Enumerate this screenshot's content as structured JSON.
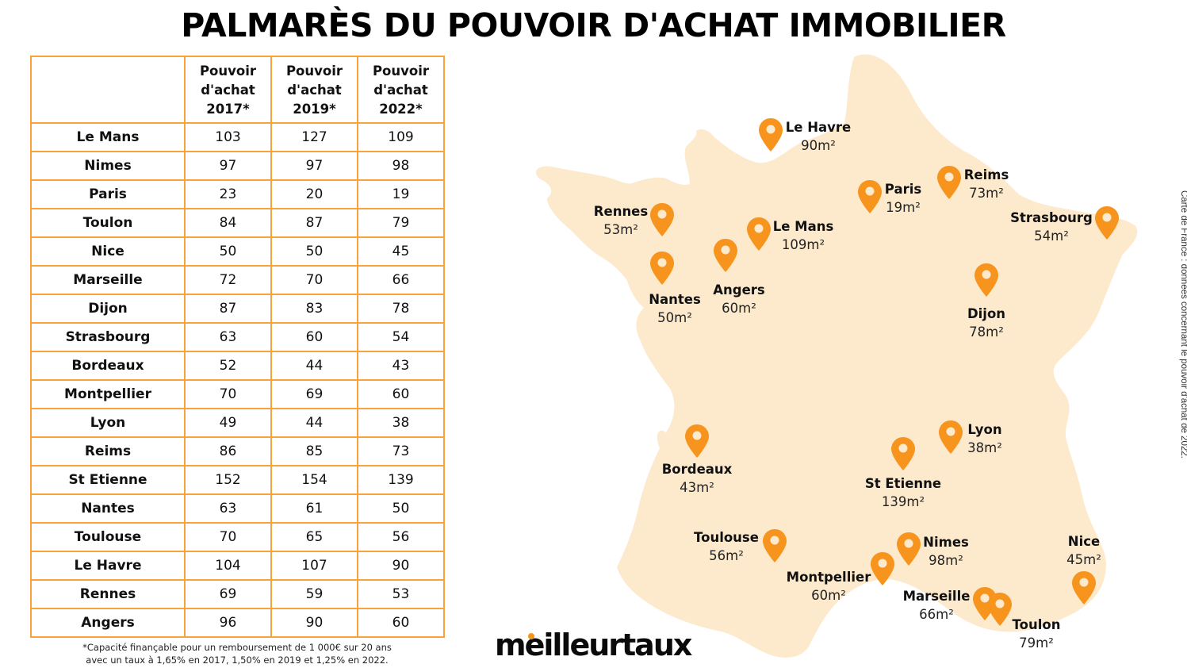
{
  "title": "PALMARÈS DU POUVOIR D'ACHAT IMMOBILIER",
  "colors": {
    "accent": "#f7941d",
    "table_border": "#f7a23b",
    "map_fill": "#fde9cc",
    "pin": "#f7941d"
  },
  "table": {
    "headers": [
      "",
      "Pouvoir d'achat 2017*",
      "Pouvoir d'achat 2019*",
      "Pouvoir d'achat 2022*"
    ],
    "header_lines": [
      [],
      [
        "Pouvoir",
        "d'achat",
        "2017*"
      ],
      [
        "Pouvoir",
        "d'achat",
        "2019*"
      ],
      [
        "Pouvoir",
        "d'achat",
        "2022*"
      ]
    ],
    "rows": [
      {
        "city": "Le Mans",
        "v2017": "103",
        "v2019": "127",
        "v2022": "109"
      },
      {
        "city": "Nimes",
        "v2017": "97",
        "v2019": "97",
        "v2022": "98"
      },
      {
        "city": "Paris",
        "v2017": "23",
        "v2019": "20",
        "v2022": "19"
      },
      {
        "city": "Toulon",
        "v2017": "84",
        "v2019": "87",
        "v2022": "79"
      },
      {
        "city": "Nice",
        "v2017": "50",
        "v2019": "50",
        "v2022": "45"
      },
      {
        "city": "Marseille",
        "v2017": "72",
        "v2019": "70",
        "v2022": "66"
      },
      {
        "city": "Dijon",
        "v2017": "87",
        "v2019": "83",
        "v2022": "78"
      },
      {
        "city": "Strasbourg",
        "v2017": "63",
        "v2019": "60",
        "v2022": "54"
      },
      {
        "city": "Bordeaux",
        "v2017": "52",
        "v2019": "44",
        "v2022": "43"
      },
      {
        "city": "Montpellier",
        "v2017": "70",
        "v2019": "69",
        "v2022": "60"
      },
      {
        "city": "Lyon",
        "v2017": "49",
        "v2019": "44",
        "v2022": "38"
      },
      {
        "city": "Reims",
        "v2017": "86",
        "v2019": "85",
        "v2022": "73"
      },
      {
        "city": "St Etienne",
        "v2017": "152",
        "v2019": "154",
        "v2022": "139"
      },
      {
        "city": "Nantes",
        "v2017": "63",
        "v2019": "61",
        "v2022": "50"
      },
      {
        "city": "Toulouse",
        "v2017": "70",
        "v2019": "65",
        "v2022": "56"
      },
      {
        "city": "Le Havre",
        "v2017": "104",
        "v2019": "107",
        "v2022": "90"
      },
      {
        "city": "Rennes",
        "v2017": "69",
        "v2019": "59",
        "v2022": "53"
      },
      {
        "city": "Angers",
        "v2017": "96",
        "v2019": "90",
        "v2022": "60"
      }
    ]
  },
  "footnote": {
    "line1": "*Capacité finançable pour un remboursement de 1 000€ sur 20 ans",
    "line2": "avec un taux à 1,65% en 2017, 1,50% en 2019 et 1,25% en 2022."
  },
  "logo": "meilleurtaux",
  "side_note": "Carte de France : données concernant le pouvoir d'achat de 2022.",
  "map": {
    "pin_icon": "map-pin-icon",
    "cities": [
      {
        "name": "Le Havre",
        "value": "90m²",
        "pin": [
          972,
          170
        ],
        "label": [
          1032,
          150
        ]
      },
      {
        "name": "Rennes",
        "value": "53m²",
        "pin": [
          835,
          277
        ],
        "label": [
          783,
          256
        ]
      },
      {
        "name": "Nantes",
        "value": "50m²",
        "pin": [
          835,
          338
        ],
        "label": [
          851,
          367
        ]
      },
      {
        "name": "Angers",
        "value": "60m²",
        "pin": [
          915,
          322
        ],
        "label": [
          932,
          355
        ]
      },
      {
        "name": "Le Mans",
        "value": "109m²",
        "pin": [
          957,
          295
        ],
        "label": [
          1013,
          275
        ]
      },
      {
        "name": "Paris",
        "value": "19m²",
        "pin": [
          1097,
          248
        ],
        "label": [
          1139,
          228
        ]
      },
      {
        "name": "Reims",
        "value": "73m²",
        "pin": [
          1197,
          230
        ],
        "label": [
          1244,
          210
        ]
      },
      {
        "name": "Strasbourg",
        "value": "54m²",
        "pin": [
          1396,
          281
        ],
        "label": [
          1326,
          264
        ]
      },
      {
        "name": "Dijon",
        "value": "78m²",
        "pin": [
          1244,
          353
        ],
        "label": [
          1244,
          385
        ]
      },
      {
        "name": "Bordeaux",
        "value": "43m²",
        "pin": [
          879,
          556
        ],
        "label": [
          879,
          581
        ]
      },
      {
        "name": "St Etienne",
        "value": "139m²",
        "pin": [
          1139,
          572
        ],
        "label": [
          1139,
          599
        ]
      },
      {
        "name": "Lyon",
        "value": "38m²",
        "pin": [
          1199,
          551
        ],
        "label": [
          1242,
          531
        ]
      },
      {
        "name": "Toulouse",
        "value": "56m²",
        "pin": [
          977,
          688
        ],
        "label": [
          916,
          667
        ]
      },
      {
        "name": "Nimes",
        "value": "98m²",
        "pin": [
          1146,
          692
        ],
        "label": [
          1193,
          673
        ]
      },
      {
        "name": "Montpellier",
        "value": "60m²",
        "pin": [
          1113,
          717
        ],
        "label": [
          1045,
          717
        ]
      },
      {
        "name": "Marseille",
        "value": "66m²",
        "pin": [
          1242,
          761
        ],
        "label": [
          1181,
          741
        ]
      },
      {
        "name": "Toulon",
        "value": "79m²",
        "pin": [
          1261,
          768
        ],
        "label": [
          1307,
          777
        ]
      },
      {
        "name": "Nice",
        "value": "45m²",
        "pin": [
          1367,
          741
        ],
        "label": [
          1367,
          672
        ]
      }
    ]
  }
}
